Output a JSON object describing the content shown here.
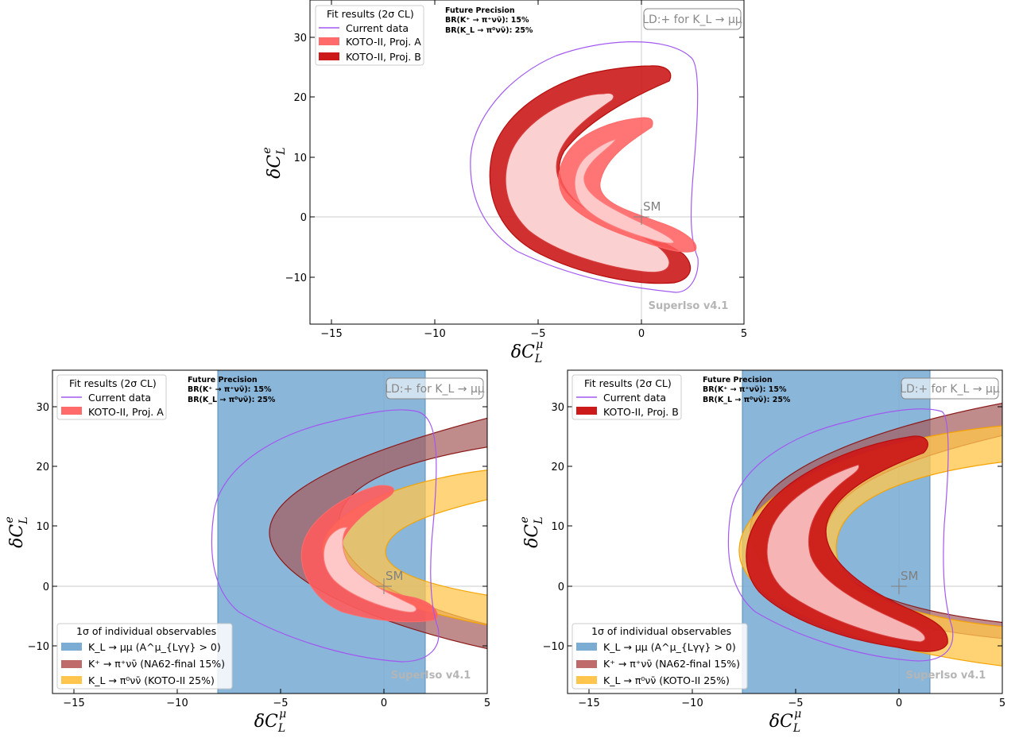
{
  "colors": {
    "current_data": "#a259f0",
    "koto_a_outer": "#ff6b6b",
    "koto_a_inner": "#ffc8c8",
    "koto_b_outer": "#cc1a1a",
    "koto_b_inner": "#f6b4b4",
    "klmumu_band": "#7aacd4",
    "kpinunu_band": "#bf6b6b",
    "kpinunu_edge": "#8b1a1a",
    "klpinunu_band": "#ffc54d",
    "klpinunu_edge": "#f5a300"
  },
  "chart_data": [
    {
      "type": "area",
      "xlabel": "δC_L^μ",
      "ylabel": "δC_L^e",
      "xlim": [
        -16,
        5
      ],
      "ylim": [
        -18,
        36
      ],
      "xticks": [
        "−15",
        "−10",
        "−5",
        "0",
        "5"
      ],
      "yticks": [
        "−10",
        "0",
        "10",
        "20",
        "30"
      ],
      "legend_placement": "top-left",
      "legend": {
        "title": "Fit results (2σ CL)",
        "entries": [
          "Current data",
          "KOTO-II, Proj. A",
          "KOTO-II, Proj. B"
        ]
      },
      "future_precision": {
        "title": "Future Precision",
        "line1": "BR(K⁺ → π⁺νν̄): 15%",
        "line2": "BR(K_L → π⁰νν̄): 25%"
      },
      "ld_label": "LD:+ for K_L → μμ",
      "watermark": "SuperIso v4.1",
      "sm_label": "SM",
      "sm_point": [
        0,
        0
      ],
      "regions": [
        {
          "name": "Current data",
          "style": "contour",
          "center": [
            -1.2,
            8.5
          ],
          "outer": [
            -7.9,
            30
          ],
          "nose": -5.4,
          "notch": 2.6,
          "y_bottom": -12.5
        },
        {
          "name": "KOTO-II, Proj. A",
          "style": "boomerang",
          "outer": [
            -3.8,
            16.5
          ],
          "inner": [
            -2.5,
            12.5
          ],
          "tip": [
            2.7,
            -4.5
          ],
          "level": "2σ"
        },
        {
          "name": "KOTO-II, Proj. B",
          "style": "boomerang",
          "outer": [
            -7.2,
            25
          ],
          "inner": [
            -6.4,
            21.5
          ],
          "tip": [
            2.4,
            -11
          ],
          "level": "2σ"
        }
      ]
    },
    {
      "type": "area",
      "xlabel": "δC_L^μ",
      "ylabel": "δC_L^e",
      "xlim": [
        -16,
        5
      ],
      "ylim": [
        -18,
        36
      ],
      "xticks": [
        "−15",
        "−10",
        "−5",
        "0",
        "5"
      ],
      "yticks": [
        "−10",
        "0",
        "10",
        "20",
        "30"
      ],
      "legend": {
        "title": "Fit results (2σ CL)",
        "entries": [
          "Current data",
          "KOTO-II, Proj. A"
        ]
      },
      "obs_legend": {
        "title": "1σ of individual observables",
        "entries": [
          "K_L → μμ (A^μ_{Lγγ} > 0)",
          "K⁺ → π⁺νν̄ (NA62-final 15%)",
          "K_L → π⁰νν̄ (KOTO-II 25%)"
        ]
      },
      "future_precision": {
        "title": "Future Precision",
        "line1": "BR(K⁺ → π⁺νν̄): 15%",
        "line2": "BR(K_L → π⁰νν̄): 25%"
      },
      "ld_label": "LD:+ for K_L → μμ",
      "watermark": "SuperIso v4.1",
      "sm_label": "SM",
      "bands": {
        "K_L → μμ": {
          "x_range": [
            -8,
            2
          ]
        },
        "K⁺ → π⁺νν̄": {
          "nose_x": [
            -5.3,
            -2.2
          ],
          "center_y": 9
        },
        "K_L → π⁰νν̄": {
          "nose_x": [
            -2.9,
            -0.2
          ],
          "center_y": 6
        }
      }
    },
    {
      "type": "area",
      "xlabel": "δC_L^μ",
      "ylabel": "δC_L^e",
      "xlim": [
        -16,
        5
      ],
      "ylim": [
        -18,
        36
      ],
      "xticks": [
        "−15",
        "−10",
        "−5",
        "0",
        "5"
      ],
      "yticks": [
        "−10",
        "0",
        "10",
        "20",
        "30"
      ],
      "legend": {
        "title": "Fit results (2σ CL)",
        "entries": [
          "Current data",
          "KOTO-II, Proj. B"
        ]
      },
      "obs_legend": {
        "title": "1σ of individual observables",
        "entries": [
          "K_L → μμ (A^μ_{Lγγ} > 0)",
          "K⁺ → π⁺νν̄ (NA62-final 15%)",
          "K_L → π⁰νν̄ (KOTO-II 25%)"
        ]
      },
      "future_precision": {
        "title": "Future Precision",
        "line1": "BR(K⁺ → π⁺νν̄): 15%",
        "line2": "BR(K_L → π⁰νν̄): 25%"
      },
      "ld_label": "LD:+ for K_L → μμ",
      "watermark": "SuperIso v4.1",
      "sm_label": "SM",
      "bands": {
        "K_L → μμ": {
          "x_range": [
            -7.5,
            1.5
          ]
        },
        "K⁺ → π⁺νν̄": {
          "nose_x": [
            -7.2,
            -3
          ],
          "center_y": 9
        },
        "K_L → π⁰νν̄": {
          "nose_x": [
            -7.7,
            -3
          ],
          "center_y": 6
        }
      }
    }
  ]
}
